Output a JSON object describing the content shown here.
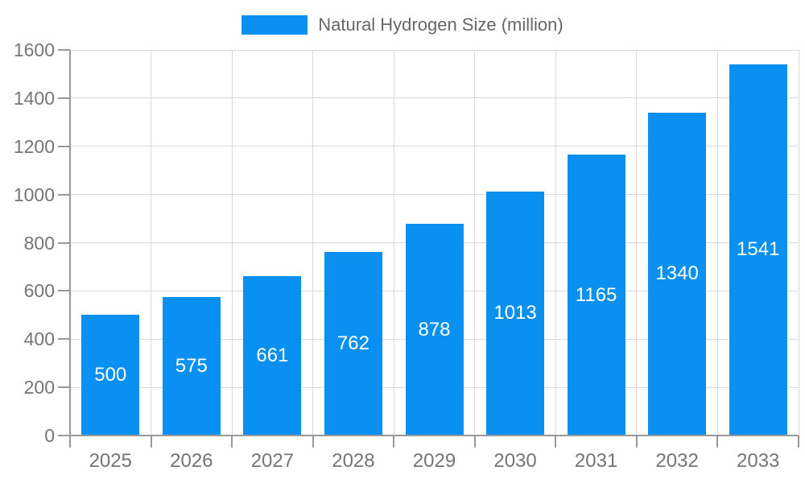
{
  "chart_data": {
    "type": "bar",
    "title": "",
    "xlabel": "",
    "ylabel": "",
    "categories": [
      "2025",
      "2026",
      "2027",
      "2028",
      "2029",
      "2030",
      "2031",
      "2032",
      "2033"
    ],
    "series": [
      {
        "name": "Natural Hydrogen Size (million)",
        "values": [
          500,
          575,
          661,
          762,
          878,
          1013,
          1165,
          1340,
          1541
        ]
      }
    ],
    "bar_value_labels": [
      "500",
      "575",
      "661",
      "762",
      "878",
      "1013",
      "1165",
      "1340",
      "1541"
    ],
    "ylim": [
      0,
      1600
    ],
    "yticks": [
      0,
      200,
      400,
      600,
      800,
      1000,
      1200,
      1400,
      1600
    ],
    "grid": true,
    "legend_position": "top"
  },
  "legend": {
    "items": [
      {
        "label": "Natural Hydrogen Size (million)"
      }
    ]
  },
  "colors": {
    "bar": "#0a90f0",
    "bar_value_text": "#ffffff",
    "grid": "#d9d9d9",
    "axis": "#999999",
    "tick_label": "#757575",
    "legend_text": "#666666",
    "background": "#ffffff"
  }
}
